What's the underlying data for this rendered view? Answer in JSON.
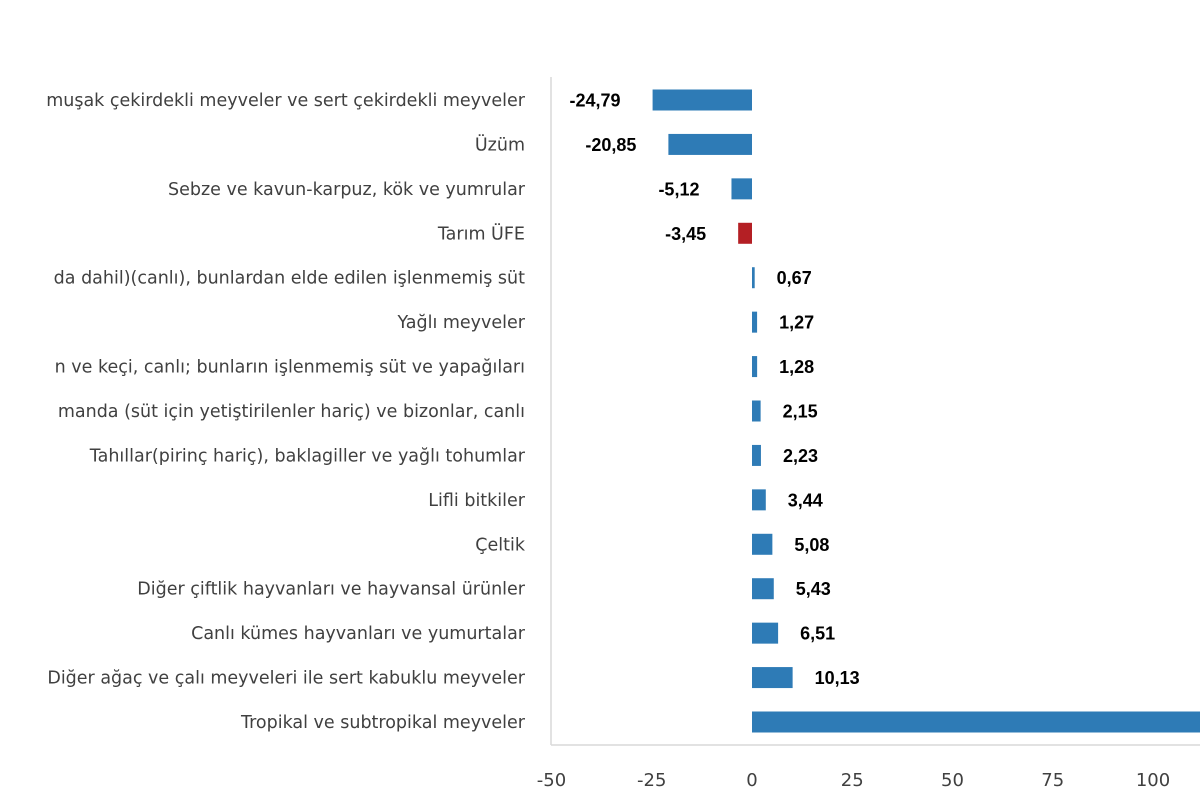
{
  "chart_data": {
    "type": "bar",
    "orientation": "horizontal",
    "categories": [
      "muşak çekirdekli meyveler ve sert çekirdekli meyveler",
      "Üzüm",
      "Sebze ve kavun-karpuz, kök ve yumrular",
      "Tarım ÜFE",
      "da dahil)(canlı), bunlardan elde edilen işlenmemiş süt",
      "Yağlı meyveler",
      "n ve keçi, canlı; bunların işlenmemiş süt ve yapağıları",
      "manda (süt için yetiştirilenler hariç) ve bizonlar, canlı",
      "Tahıllar(pirinç hariç), baklagiller ve yağlı tohumlar",
      "Lifli bitkiler",
      "Çeltik",
      "Diğer çiftlik hayvanları ve hayvansal ürünler",
      "Canlı kümes hayvanları ve yumurtalar",
      "Diğer ağaç ve çalı meyveleri ile sert kabuklu meyveler",
      "Tropikal ve subtropikal meyveler"
    ],
    "values": [
      -24.79,
      -20.85,
      -5.12,
      -3.45,
      0.67,
      1.27,
      1.28,
      2.15,
      2.23,
      3.44,
      5.08,
      5.43,
      6.51,
      10.13,
      null
    ],
    "data_labels": [
      "-24,79",
      "-20,85",
      "-5,12",
      "-3,45",
      "0,67",
      "1,27",
      "1,28",
      "2,15",
      "2,23",
      "3,44",
      "5,08",
      "5,43",
      "6,51",
      "10,13",
      ""
    ],
    "highlight_category": "Tarım ÜFE",
    "colors": {
      "default": "#2E7BB6",
      "highlight": "#B41F24",
      "axis": "#D9D9D9"
    },
    "xticks": [
      "-50",
      "-25",
      "0",
      "25",
      "50",
      "75",
      "100"
    ],
    "xtick_values": [
      -50,
      -25,
      0,
      25,
      50,
      75,
      100
    ],
    "xlim": [
      -50,
      112
    ],
    "grid": false
  }
}
